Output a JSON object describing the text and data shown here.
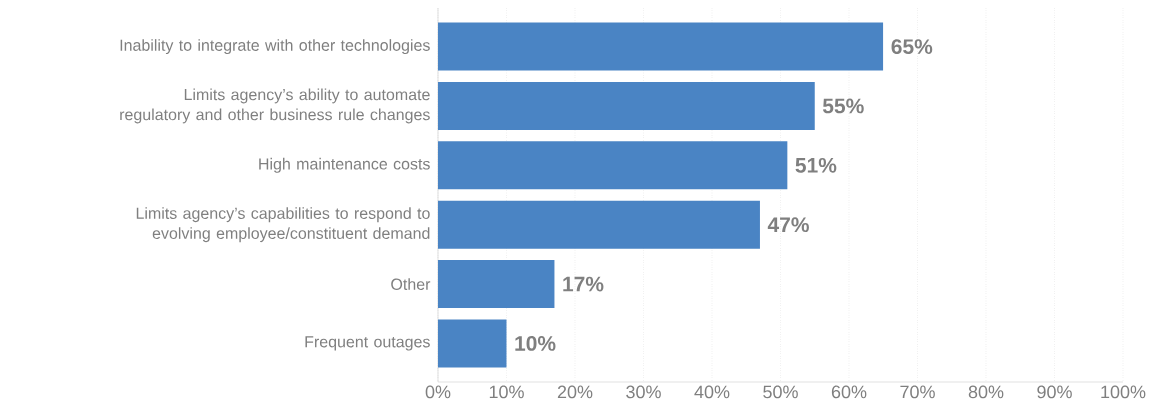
{
  "chart_data": {
    "type": "bar",
    "orientation": "horizontal",
    "categories": [
      "Inability to integrate with other technologies",
      "Limits agency’s ability to automate regulatory and other business rule changes",
      "High maintenance costs",
      "Limits agency’s capabilities to respond to evolving employee/constituent demand",
      "Other",
      "Frequent outages"
    ],
    "values": [
      65,
      55,
      51,
      47,
      17,
      10
    ],
    "value_labels": [
      "65%",
      "55%",
      "51%",
      "47%",
      "17%",
      "10%"
    ],
    "color": "#4a84c4",
    "xlim": [
      0,
      100
    ],
    "xticks": [
      {
        "value": 0,
        "label": "0%"
      },
      {
        "value": 10,
        "label": "10%"
      },
      {
        "value": 20,
        "label": "20%"
      },
      {
        "value": 30,
        "label": "30%"
      },
      {
        "value": 40,
        "label": "40%"
      },
      {
        "value": 50,
        "label": "50%"
      },
      {
        "value": 60,
        "label": "60%"
      },
      {
        "value": 70,
        "label": "70%"
      },
      {
        "value": 80,
        "label": "80%"
      },
      {
        "value": 90,
        "label": "90%"
      },
      {
        "value": 100,
        "label": "100%"
      }
    ],
    "grid": "x"
  }
}
